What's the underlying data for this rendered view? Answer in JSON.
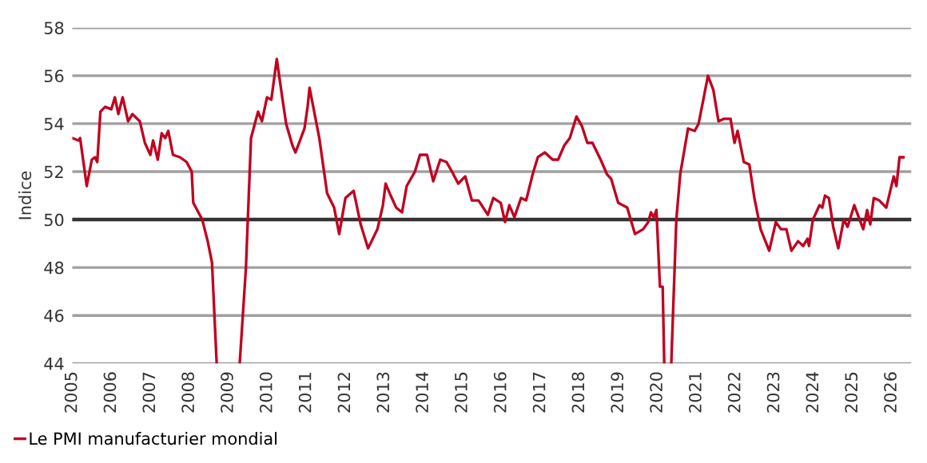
{
  "chart_data": {
    "type": "line",
    "ylabel": "Indice",
    "x": [
      2005.0,
      2005.16,
      2005.2,
      2005.37,
      2005.5,
      2005.58,
      2005.64,
      2005.72,
      2005.84,
      2006.0,
      2006.09,
      2006.18,
      2006.29,
      2006.43,
      2006.54,
      2006.73,
      2006.86,
      2007.0,
      2007.07,
      2007.19,
      2007.29,
      2007.38,
      2007.46,
      2007.58,
      2007.76,
      2007.93,
      2008.06,
      2008.1,
      2008.33,
      2008.47,
      2008.58,
      2008.7,
      2009.0,
      2009.29,
      2009.45,
      2009.58,
      2009.76,
      2009.86,
      2009.99,
      2010.1,
      2010.24,
      2010.38,
      2010.48,
      2010.64,
      2010.72,
      2010.95,
      2011.03,
      2011.08,
      2011.33,
      2011.53,
      2011.71,
      2011.84,
      2012.0,
      2012.21,
      2012.39,
      2012.58,
      2012.82,
      2012.96,
      2013.03,
      2013.16,
      2013.3,
      2013.45,
      2013.57,
      2013.78,
      2013.91,
      2014.09,
      2014.25,
      2014.43,
      2014.59,
      2014.73,
      2014.89,
      2015.07,
      2015.24,
      2015.41,
      2015.65,
      2015.79,
      2015.98,
      2016.09,
      2016.2,
      2016.33,
      2016.5,
      2016.63,
      2016.8,
      2016.93,
      2017.11,
      2017.31,
      2017.45,
      2017.61,
      2017.75,
      2017.92,
      2018.06,
      2018.2,
      2018.33,
      2018.54,
      2018.7,
      2018.81,
      2018.99,
      2019.22,
      2019.42,
      2019.63,
      2019.76,
      2019.83,
      2019.9,
      2019.97,
      2020.06,
      2020.13,
      2020.17,
      2020.26,
      2020.35,
      2020.48,
      2020.58,
      2020.78,
      2020.95,
      2021.05,
      2021.16,
      2021.29,
      2021.43,
      2021.56,
      2021.69,
      2021.87,
      2021.97,
      2022.05,
      2022.21,
      2022.35,
      2022.48,
      2022.64,
      2022.86,
      2023.03,
      2023.16,
      2023.3,
      2023.43,
      2023.6,
      2023.73,
      2023.84,
      2023.88,
      2023.98,
      2024.15,
      2024.22,
      2024.29,
      2024.39,
      2024.5,
      2024.63,
      2024.77,
      2024.87,
      2025.04,
      2025.27,
      2025.37,
      2025.45,
      2025.54,
      2025.68,
      2025.86,
      2026.05,
      2026.12,
      2026.2,
      2026.3
    ],
    "series": [
      {
        "name": "Le PMI manufacturier mondial",
        "color": "#c00020",
        "values": [
          53.4,
          53.3,
          53.4,
          51.4,
          52.5,
          52.6,
          52.4,
          54.5,
          54.7,
          54.6,
          55.1,
          54.4,
          55.1,
          54.1,
          54.4,
          54.1,
          53.2,
          52.7,
          53.3,
          52.5,
          53.6,
          53.4,
          53.7,
          52.7,
          52.6,
          52.4,
          52.0,
          50.7,
          50.0,
          49.1,
          48.2,
          44.0,
          null,
          44.0,
          48.0,
          53.4,
          54.5,
          54.1,
          55.1,
          55.0,
          56.7,
          55.1,
          54.0,
          53.1,
          52.8,
          53.8,
          54.7,
          55.5,
          53.4,
          51.1,
          50.5,
          49.4,
          50.9,
          51.2,
          49.8,
          48.8,
          49.6,
          50.6,
          51.5,
          51.0,
          50.5,
          50.3,
          51.4,
          52.0,
          52.7,
          52.7,
          51.6,
          52.5,
          52.4,
          52.0,
          51.5,
          51.8,
          50.8,
          50.8,
          50.2,
          50.9,
          50.7,
          49.9,
          50.6,
          50.1,
          50.9,
          50.8,
          51.9,
          52.6,
          52.8,
          52.5,
          52.5,
          53.1,
          53.4,
          54.3,
          53.9,
          53.2,
          53.2,
          52.5,
          51.9,
          51.7,
          50.7,
          50.5,
          49.4,
          49.6,
          49.9,
          50.3,
          50.1,
          50.4,
          47.2,
          47.2,
          44.0,
          null,
          44.0,
          50.0,
          51.9,
          53.8,
          53.7,
          54.0,
          54.9,
          56.0,
          55.4,
          54.1,
          54.2,
          54.2,
          53.2,
          53.7,
          52.4,
          52.3,
          50.9,
          49.6,
          48.7,
          49.9,
          49.6,
          49.6,
          48.7,
          49.1,
          48.9,
          49.2,
          48.9,
          50.0,
          50.6,
          50.5,
          51.0,
          50.9,
          49.7,
          48.8,
          50.0,
          49.7,
          50.6,
          49.6,
          50.4,
          49.8,
          50.9,
          50.8,
          50.5,
          51.8,
          51.4,
          52.6,
          52.6
        ]
      }
    ],
    "xlim": [
      2005,
      2026.5
    ],
    "xticks": [
      2005,
      2006,
      2007,
      2008,
      2009,
      2010,
      2011,
      2012,
      2013,
      2014,
      2015,
      2016,
      2017,
      2018,
      2019,
      2020,
      2021,
      2022,
      2023,
      2024,
      2025,
      2026
    ],
    "ylim": [
      44,
      58
    ],
    "yticks": [
      44,
      46,
      48,
      50,
      52,
      54,
      56,
      58
    ],
    "ref_lines": [
      {
        "axis": "y",
        "value": 50,
        "color": "#333333"
      }
    ],
    "grid": "y",
    "legend": "bottom left",
    "line_style": "solid",
    "marker": "none"
  }
}
